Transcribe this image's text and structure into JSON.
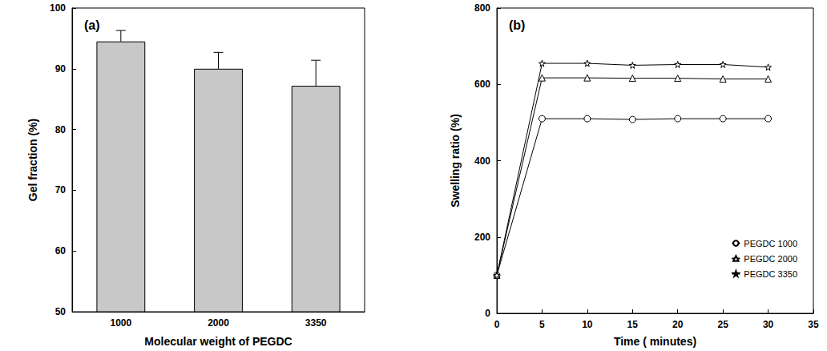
{
  "chart_data": [
    {
      "type": "bar",
      "title": "(a)",
      "x_label": "Molecular weight of PEGDC",
      "y_label": "Gel fraction (%)",
      "categories": [
        "1000",
        "2000",
        "3350"
      ],
      "values": [
        94.5,
        90.0,
        87.2
      ],
      "errors": [
        1.8,
        2.7,
        4.2
      ],
      "color": "#c8c8c8",
      "ylim": [
        50,
        100
      ],
      "yticks": [
        50,
        60,
        70,
        80,
        90,
        100
      ]
    },
    {
      "type": "line",
      "title": "(b)",
      "x_label": "Time ( minutes)",
      "y_label": "Swelling ratio (%)",
      "legend": "lower right",
      "x": [
        0,
        5,
        10,
        15,
        20,
        25,
        30
      ],
      "xlim": [
        0,
        35
      ],
      "xticks": [
        0,
        5,
        10,
        15,
        20,
        25,
        30,
        35
      ],
      "ylim": [
        0,
        800
      ],
      "yticks": [
        0,
        200,
        400,
        600,
        800
      ],
      "series": [
        {
          "name": "PEGDC 1000",
          "marker": "circle",
          "color": "#000000",
          "values": [
            100,
            510,
            510,
            508,
            510,
            510,
            510
          ]
        },
        {
          "name": "PEGDC 2000",
          "marker": "triangle",
          "color": "#000000",
          "values": [
            100,
            617,
            617,
            616,
            616,
            614,
            614
          ]
        },
        {
          "name": "PEGDC 3350",
          "marker": "star",
          "color": "#000000",
          "values": [
            100,
            655,
            655,
            650,
            652,
            652,
            645
          ]
        }
      ]
    }
  ]
}
